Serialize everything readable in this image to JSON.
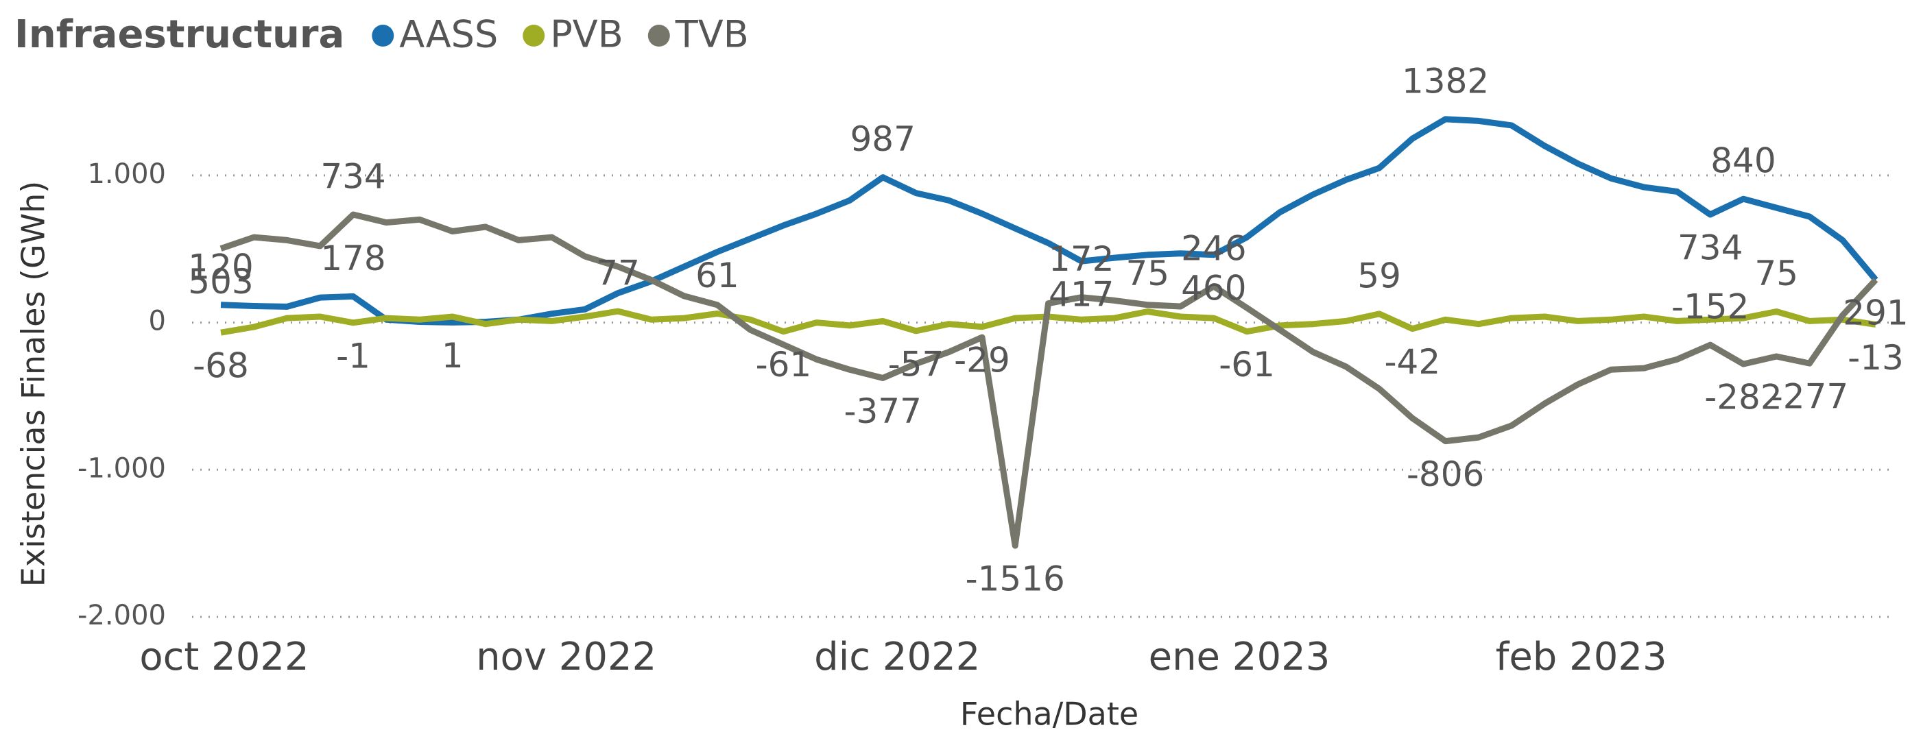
{
  "chart_data": {
    "type": "line",
    "title": "Infraestructura",
    "x_label": "Fecha/Date",
    "y_label": "Existencias Finales (GWh)",
    "x": [
      0,
      3,
      6,
      9,
      12,
      15,
      18,
      21,
      24,
      27,
      30,
      33,
      36,
      39,
      42,
      45,
      48,
      51,
      54,
      57,
      60,
      63,
      66,
      69,
      72,
      75,
      78,
      81,
      84,
      87,
      90,
      93,
      96,
      99,
      102,
      105,
      108,
      111,
      114,
      117,
      120,
      123,
      126,
      129,
      132,
      135,
      138,
      141,
      144,
      147,
      150
    ],
    "xlim": [
      0,
      150
    ],
    "xticks": [
      {
        "value": 0,
        "label": "oct 2022"
      },
      {
        "value": 31,
        "label": "nov 2022"
      },
      {
        "value": 61,
        "label": "dic 2022"
      },
      {
        "value": 92,
        "label": "ene 2023"
      },
      {
        "value": 123,
        "label": "feb 2023"
      }
    ],
    "ylim": [
      -2000,
      1400
    ],
    "yticks": [
      {
        "value": -2000,
        "label": "-2.000"
      },
      {
        "value": -1000,
        "label": "-1.000"
      },
      0,
      {
        "value": 1000,
        "label": "1.000"
      }
    ],
    "grid": true,
    "legend": "top-left",
    "series": [
      {
        "name": "AASS",
        "color": "#1a6fae",
        "values": [
          120,
          112,
          108,
          170,
          178,
          20,
          5,
          1,
          5,
          20,
          60,
          90,
          200,
          280,
          380,
          480,
          570,
          660,
          740,
          830,
          987,
          880,
          830,
          740,
          640,
          540,
          417,
          440,
          460,
          470,
          460,
          580,
          750,
          870,
          970,
          1050,
          1250,
          1382,
          1370,
          1340,
          1200,
          1080,
          980,
          920,
          890,
          734,
          840,
          780,
          720,
          560,
          291
        ],
        "value_labels": [
          "120",
          null,
          null,
          null,
          "178",
          null,
          null,
          "1",
          null,
          null,
          null,
          null,
          null,
          null,
          null,
          null,
          null,
          null,
          null,
          null,
          "987",
          null,
          null,
          null,
          null,
          null,
          "417",
          null,
          null,
          null,
          "460",
          null,
          null,
          null,
          null,
          null,
          null,
          "1382",
          null,
          null,
          null,
          null,
          null,
          null,
          null,
          "734",
          "840",
          null,
          null,
          null,
          "291"
        ]
      },
      {
        "name": "PVB",
        "color": "#9fad24",
        "values": [
          -68,
          -30,
          30,
          40,
          -1,
          30,
          20,
          40,
          -10,
          20,
          10,
          40,
          77,
          20,
          30,
          61,
          20,
          -61,
          0,
          -20,
          10,
          -57,
          -10,
          -29,
          30,
          40,
          20,
          30,
          75,
          40,
          30,
          -61,
          -20,
          -10,
          10,
          59,
          -42,
          20,
          -10,
          30,
          40,
          10,
          20,
          40,
          10,
          20,
          30,
          75,
          10,
          20,
          -13
        ],
        "value_labels": [
          "-68",
          null,
          null,
          null,
          "-1",
          null,
          null,
          null,
          null,
          null,
          null,
          null,
          "77",
          null,
          null,
          "61",
          null,
          "-61",
          null,
          null,
          null,
          "-57",
          null,
          "-29",
          null,
          null,
          null,
          null,
          "75",
          null,
          null,
          "-61",
          null,
          null,
          null,
          "59",
          "-42",
          null,
          null,
          null,
          null,
          null,
          null,
          null,
          null,
          null,
          null,
          "75",
          null,
          null,
          "-13"
        ]
      },
      {
        "name": "TVB",
        "color": "#76766a",
        "values": [
          503,
          580,
          560,
          520,
          734,
          680,
          700,
          620,
          650,
          560,
          580,
          450,
          380,
          290,
          180,
          120,
          -50,
          -150,
          -250,
          -320,
          -377,
          -280,
          -200,
          -100,
          -1516,
          130,
          172,
          150,
          120,
          110,
          246,
          100,
          -50,
          -200,
          -300,
          -450,
          -650,
          -806,
          -780,
          -700,
          -550,
          -420,
          -320,
          -310,
          -250,
          -152,
          -282,
          -230,
          -277,
          50,
          290
        ],
        "value_labels": [
          "503",
          null,
          null,
          null,
          "734",
          null,
          null,
          null,
          null,
          null,
          null,
          null,
          null,
          null,
          null,
          null,
          null,
          null,
          null,
          null,
          "-377",
          null,
          null,
          null,
          "-1516",
          null,
          "172",
          null,
          null,
          null,
          "246",
          null,
          null,
          null,
          null,
          null,
          null,
          "-806",
          null,
          null,
          null,
          null,
          null,
          null,
          null,
          "-152",
          "-282",
          null,
          "-277",
          null,
          null
        ]
      }
    ]
  }
}
